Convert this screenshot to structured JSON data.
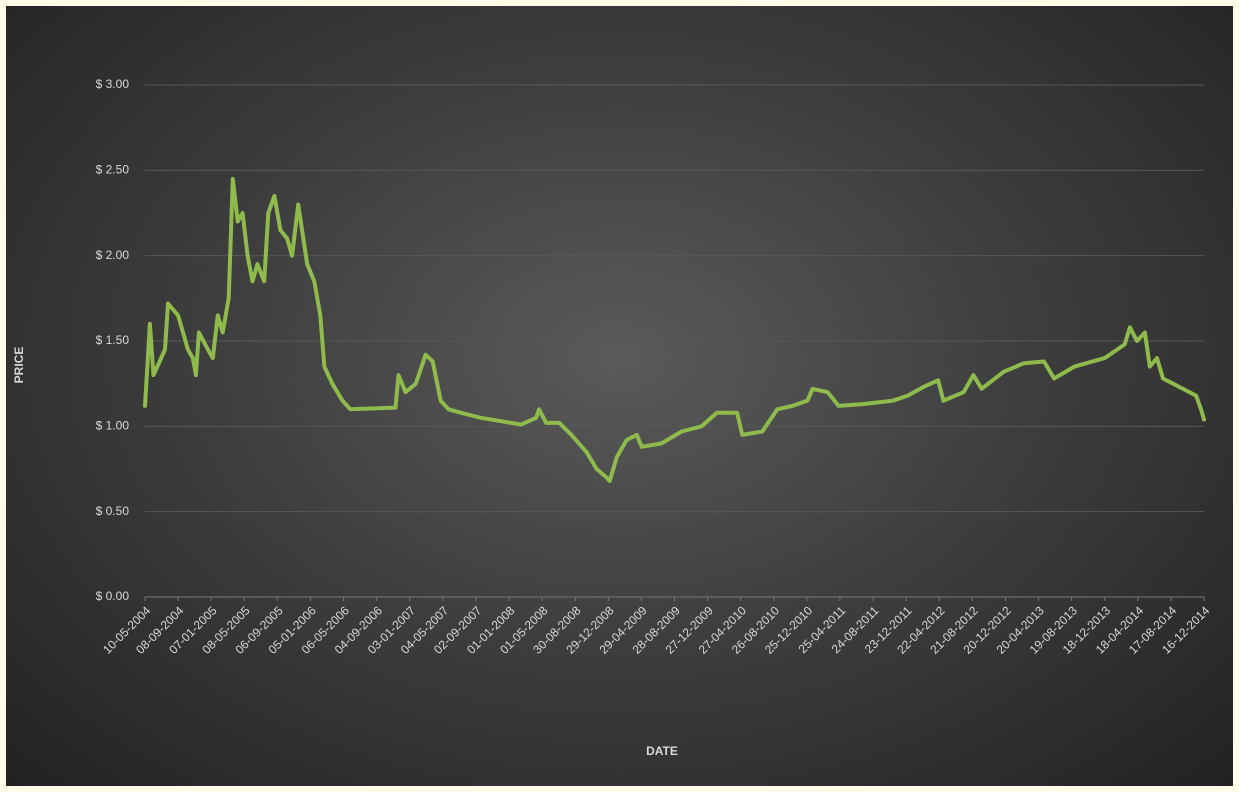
{
  "chart_data": {
    "type": "line",
    "xlabel": "DATE",
    "ylabel": "PRICE",
    "grid": true,
    "ylim": [
      0,
      3
    ],
    "yticks": [
      {
        "value": 0,
        "label": "$ 0.00"
      },
      {
        "value": 0.5,
        "label": "$ 0.50"
      },
      {
        "value": 1,
        "label": "$ 1.00"
      },
      {
        "value": 1.5,
        "label": "$ 1.50"
      },
      {
        "value": 2,
        "label": "$ 2.00"
      },
      {
        "value": 2.5,
        "label": "$ 2.50"
      },
      {
        "value": 3,
        "label": "$ 3.00"
      }
    ],
    "xlim": [
      "10-05-2004",
      "16-12-2014"
    ],
    "xticks": [
      "10-05-2004",
      "08-09-2004",
      "07-01-2005",
      "08-05-2005",
      "06-09-2005",
      "05-01-2006",
      "06-05-2006",
      "04-09-2006",
      "03-01-2007",
      "04-05-2007",
      "02-09-2007",
      "01-01-2008",
      "01-05-2008",
      "30-08-2008",
      "29-12-2008",
      "29-04-2009",
      "28-08-2009",
      "27-12-2009",
      "27-04-2010",
      "26-08-2010",
      "25-12-2010",
      "25-04-2011",
      "24-08-2011",
      "23-12-2011",
      "22-04-2012",
      "21-08-2012",
      "20-12-2012",
      "20-04-2013",
      "19-08-2013",
      "18-12-2013",
      "18-04-2014",
      "17-08-2014",
      "16-12-2014"
    ],
    "series": [
      {
        "color": "#8fba4c",
        "x": [
          "10-05-2004",
          "28-05-2004",
          "10-06-2004",
          "22-07-2004",
          "02-08-2004",
          "08-09-2004",
          "26-09-2004",
          "14-10-2004",
          "01-11-2004",
          "12-11-2004",
          "23-11-2004",
          "26-12-2004",
          "13-01-2005",
          "31-01-2005",
          "18-02-2005",
          "12-03-2005",
          "27-03-2005",
          "14-04-2005",
          "02-05-2005",
          "20-05-2005",
          "07-06-2005",
          "25-06-2005",
          "20-07-2005",
          "04-08-2005",
          "26-08-2005",
          "17-09-2005",
          "12-10-2005",
          "30-10-2005",
          "21-11-2005",
          "24-12-2005",
          "19-01-2006",
          "10-02-2006",
          "25-02-2006",
          "26-03-2006",
          "02-05-2006",
          "31-05-2006",
          "12-11-2006",
          "23-11-2006",
          "19-12-2006",
          "25-01-2007",
          "02-03-2007",
          "28-03-2007",
          "26-04-2007",
          "25-05-2007",
          "08-07-2007",
          "20-09-2007",
          "03-12-2007",
          "14-02-2008",
          "09-04-2008",
          "20-04-2008",
          "16-05-2008",
          "03-07-2008",
          "16-08-2008",
          "10-10-2008",
          "16-11-2008",
          "23-12-2008",
          "03-01-2009",
          "29-01-2009",
          "06-03-2009",
          "12-04-2009",
          "30-04-2009",
          "12-07-2009",
          "23-09-2009",
          "05-12-2009",
          "30-01-2010",
          "14-04-2010",
          "03-05-2010",
          "15-07-2010",
          "08-09-2010",
          "02-11-2010",
          "27-12-2010",
          "15-01-2011",
          "11-03-2011",
          "20-04-2011",
          "17-07-2011",
          "04-11-2011",
          "29-12-2011",
          "23-02-2012",
          "18-04-2012",
          "07-05-2012",
          "20-07-2012",
          "25-08-2012",
          "24-09-2012",
          "14-12-2012",
          "26-02-2013",
          "10-05-2013",
          "16-06-2013",
          "29-08-2013",
          "18-12-2013",
          "01-03-2014",
          "20-03-2014",
          "15-04-2014",
          "14-05-2014",
          "01-06-2014",
          "27-06-2014",
          "19-07-2014",
          "17-11-2014",
          "05-12-2014",
          "16-12-2014"
        ],
        "values": [
          1.12,
          1.6,
          1.3,
          1.45,
          1.72,
          1.65,
          1.55,
          1.45,
          1.4,
          1.3,
          1.55,
          1.45,
          1.4,
          1.65,
          1.55,
          1.75,
          2.45,
          2.2,
          2.25,
          2.0,
          1.85,
          1.95,
          1.85,
          2.25,
          2.35,
          2.15,
          2.1,
          2.0,
          2.3,
          1.95,
          1.85,
          1.65,
          1.35,
          1.25,
          1.15,
          1.1,
          1.11,
          1.3,
          1.2,
          1.25,
          1.42,
          1.38,
          1.15,
          1.1,
          1.08,
          1.05,
          1.03,
          1.01,
          1.05,
          1.1,
          1.02,
          1.02,
          0.95,
          0.85,
          0.75,
          0.7,
          0.68,
          0.82,
          0.92,
          0.95,
          0.88,
          0.9,
          0.97,
          1.0,
          1.08,
          1.08,
          0.95,
          0.97,
          1.1,
          1.12,
          1.15,
          1.22,
          1.2,
          1.12,
          1.13,
          1.15,
          1.18,
          1.23,
          1.27,
          1.15,
          1.2,
          1.3,
          1.22,
          1.32,
          1.37,
          1.38,
          1.28,
          1.35,
          1.4,
          1.48,
          1.58,
          1.5,
          1.55,
          1.35,
          1.4,
          1.28,
          1.18,
          1.1,
          1.04
        ]
      }
    ]
  }
}
